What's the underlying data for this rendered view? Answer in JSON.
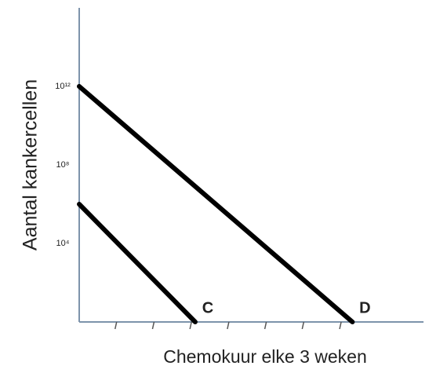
{
  "chart_data": {
    "type": "line",
    "y_label": "Aantal kankercellen",
    "x_label": "Chemokuur elke 3 weken",
    "log_y": true,
    "xlim": [
      0,
      9.2
    ],
    "xticks": [
      1,
      2,
      3,
      4,
      5,
      6,
      7
    ],
    "ylim": [
      1,
      1e+16
    ],
    "yticks": [
      {
        "value": 10000,
        "label": "10⁴"
      },
      {
        "value": 100000000,
        "label": "10⁸"
      },
      {
        "value": 1000000000000,
        "label": "10¹²"
      }
    ],
    "series": [
      {
        "name": "D",
        "color": "#000000",
        "x": [
          0,
          7.3
        ],
        "values": [
          1000000000000,
          1
        ]
      },
      {
        "name": "C",
        "color": "#000000",
        "x": [
          0,
          3.1
        ],
        "values": [
          1000000,
          1
        ]
      }
    ]
  }
}
